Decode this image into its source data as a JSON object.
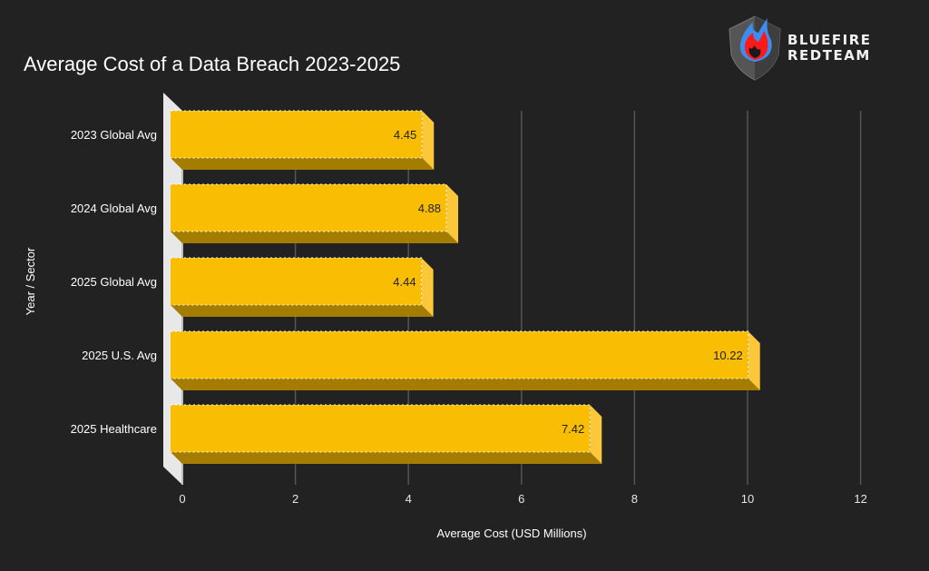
{
  "logo": {
    "line1": "BLUEFIRE",
    "line2": "REDTEAM",
    "icon": "shield-flame-icon"
  },
  "colors": {
    "background": "#222222",
    "bar_front": "#f9bd04",
    "bar_bottom": "#a37c00",
    "bar_side": "#fcc83a",
    "grid": "#555555",
    "text": "#ffffff"
  },
  "chart_data": {
    "type": "bar",
    "orientation": "horizontal",
    "title": "Average Cost of a Data Breach 2023-2025",
    "xlabel": "Average Cost (USD Millions)",
    "ylabel": "Year / Sector",
    "categories": [
      "2023 Global Avg",
      "2024 Global Avg",
      "2025 Global Avg",
      "2025 U.S. Avg",
      "2025 Healthcare"
    ],
    "values": [
      4.45,
      4.88,
      4.44,
      10.22,
      7.42
    ],
    "value_labels": [
      "4.45",
      "4.88",
      "4.44",
      "10.22",
      "7.42"
    ],
    "xlim": [
      0,
      12
    ],
    "xticks": [
      "0",
      "2",
      "4",
      "6",
      "8",
      "10",
      "12"
    ],
    "grid": true,
    "legend": "none",
    "style": "3d"
  }
}
